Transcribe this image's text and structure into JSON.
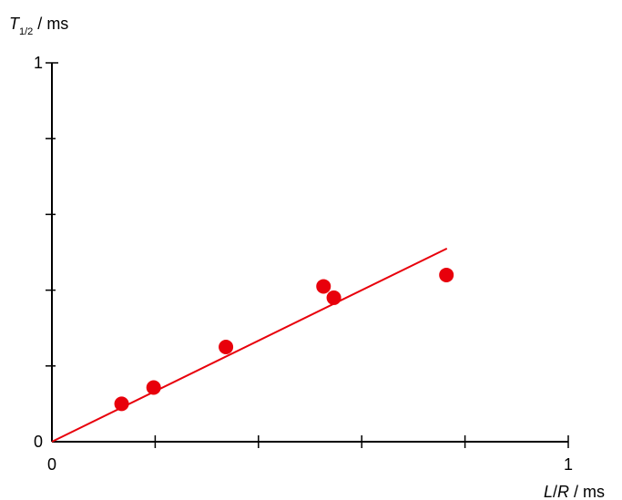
{
  "chart_data": {
    "type": "scatter",
    "title": "",
    "xlabel": {
      "var": "L/R",
      "unit": "ms"
    },
    "ylabel": {
      "var": "T",
      "sub": "1/2",
      "unit": "ms"
    },
    "xlim": [
      0,
      1
    ],
    "ylim": [
      0,
      1
    ],
    "xticks": {
      "major_labels": [
        "0",
        "1"
      ],
      "minor": [
        0.2,
        0.4,
        0.6,
        0.8
      ]
    },
    "yticks": {
      "major_labels": [
        "0",
        "1"
      ],
      "minor": [
        0.2,
        0.4,
        0.6,
        0.8
      ]
    },
    "grid": false,
    "legend": "none",
    "points": [
      {
        "x": 0.135,
        "y": 0.1
      },
      {
        "x": 0.197,
        "y": 0.143
      },
      {
        "x": 0.337,
        "y": 0.25
      },
      {
        "x": 0.526,
        "y": 0.41
      },
      {
        "x": 0.546,
        "y": 0.38
      },
      {
        "x": 0.764,
        "y": 0.44
      }
    ],
    "fit_line": {
      "x": [
        0,
        0.765
      ],
      "y": [
        0,
        0.51
      ]
    },
    "colors": {
      "points": "#e8000b",
      "fit": "#e8000b",
      "axes": "#000000"
    }
  }
}
